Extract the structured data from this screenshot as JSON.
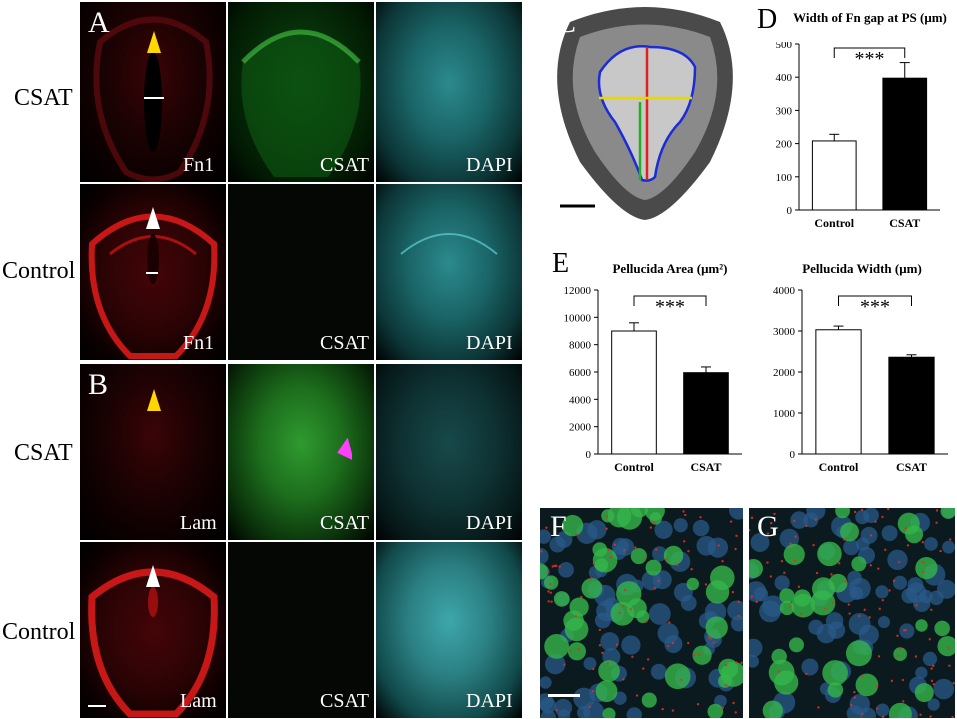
{
  "row_labels": {
    "a_csat": "CSAT",
    "a_control": "Control",
    "b_csat": "CSAT",
    "b_control": "Control"
  },
  "panel_letters": {
    "a": "A",
    "b": "B",
    "c": "C",
    "d": "D",
    "e": "E",
    "f": "F",
    "g": "G"
  },
  "channel_labels": {
    "a_csat_red": "Fn1",
    "a_csat_green": "CSAT",
    "a_csat_cyan": "DAPI",
    "a_ctrl_red": "Fn1",
    "a_ctrl_green": "CSAT",
    "a_ctrl_cyan": "DAPI",
    "b_csat_red": "Lam",
    "b_csat_green": "CSAT",
    "b_csat_cyan": "DAPI",
    "b_ctrl_red": "Lam",
    "b_ctrl_green": "CSAT",
    "b_ctrl_cyan": "DAPI"
  },
  "colors": {
    "arrow_yellow": "#ffd700",
    "arrow_white": "#ffffff",
    "arrow_magenta": "#ff40ff",
    "outline_blue": "#1a2bd8",
    "line_red": "#e02020",
    "line_yellow": "#e8d800",
    "line_green": "#20b020"
  },
  "chart_data": [
    {
      "id": "D",
      "type": "bar",
      "title": "Width of Fn gap at PS (μm)",
      "categories": [
        "Control",
        "CSAT"
      ],
      "values": [
        208,
        397
      ],
      "errors": [
        20,
        47
      ],
      "bar_colors": [
        "#ffffff",
        "#000000"
      ],
      "ylim": [
        0,
        500
      ],
      "yticks": [
        "0",
        "100",
        "200",
        "300",
        "400",
        "500"
      ],
      "significance": "***"
    },
    {
      "id": "E1",
      "type": "bar",
      "title": "Pellucida Area (μm²)",
      "categories": [
        "Control",
        "CSAT"
      ],
      "values": [
        9000,
        5950
      ],
      "errors": [
        600,
        420
      ],
      "bar_colors": [
        "#ffffff",
        "#000000"
      ],
      "ylim": [
        0,
        12000
      ],
      "yticks": [
        "0",
        "2000",
        "4000",
        "6000",
        "8000",
        "10000",
        "12000"
      ],
      "significance": "***"
    },
    {
      "id": "E2",
      "type": "bar",
      "title": "Pellucida Width (μm)",
      "categories": [
        "Control",
        "CSAT"
      ],
      "values": [
        3030,
        2360
      ],
      "errors": [
        90,
        60
      ],
      "bar_colors": [
        "#ffffff",
        "#000000"
      ],
      "ylim": [
        0,
        4000
      ],
      "yticks": [
        "0",
        "1000",
        "2000",
        "3000",
        "4000"
      ],
      "significance": "***"
    }
  ]
}
